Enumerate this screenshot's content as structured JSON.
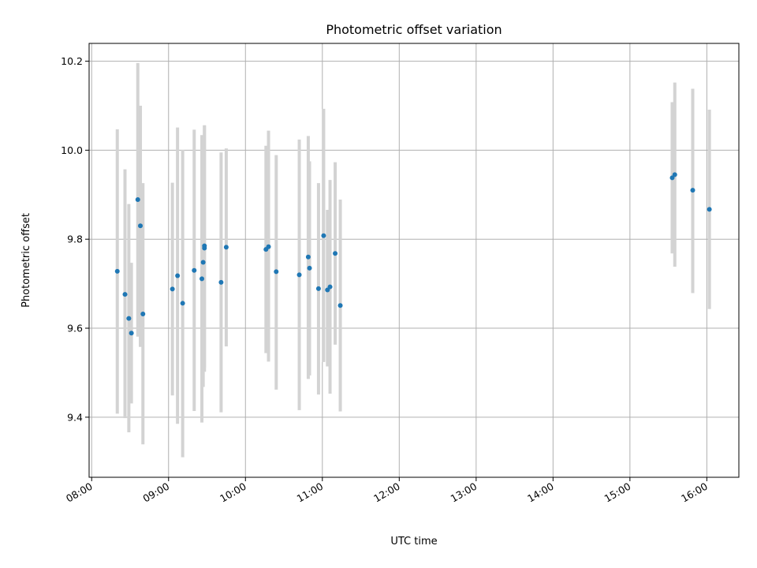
{
  "chart_data": {
    "type": "scatter",
    "title": "Photometric offset variation",
    "xlabel": "UTC time",
    "ylabel": "Photometric offset",
    "grid": true,
    "legend": "none",
    "xlim": [
      "07:58",
      "16:25"
    ],
    "ylim": [
      9.265,
      10.24
    ],
    "x_ticks": [
      "08:00",
      "09:00",
      "10:00",
      "11:00",
      "12:00",
      "13:00",
      "14:00",
      "15:00",
      "16:00"
    ],
    "y_ticks": [
      9.4,
      9.6,
      9.8,
      10.0,
      10.2
    ],
    "y_tick_labels": [
      "9.4",
      "9.6",
      "9.8",
      "10.0",
      "10.2"
    ],
    "colors": {
      "point": "#1f77b4",
      "errorbar": "#d3d3d3",
      "grid": "#b0b0b0"
    },
    "series": [
      {
        "points": [
          {
            "t": "08:20",
            "y": 9.728,
            "lo": 9.408,
            "hi": 10.047
          },
          {
            "t": "08:26",
            "y": 9.676,
            "lo": 9.398,
            "hi": 9.957
          },
          {
            "t": "08:29",
            "y": 9.622,
            "lo": 9.366,
            "hi": 9.879
          },
          {
            "t": "08:31",
            "y": 9.589,
            "lo": 9.431,
            "hi": 9.747
          },
          {
            "t": "08:36",
            "y": 9.889,
            "lo": 9.581,
            "hi": 10.196
          },
          {
            "t": "08:38",
            "y": 9.83,
            "lo": 9.558,
            "hi": 10.1
          },
          {
            "t": "08:40",
            "y": 9.632,
            "lo": 9.339,
            "hi": 9.926
          },
          {
            "t": "09:03",
            "y": 9.688,
            "lo": 9.449,
            "hi": 9.927
          },
          {
            "t": "09:07",
            "y": 9.718,
            "lo": 9.385,
            "hi": 10.051
          },
          {
            "t": "09:11",
            "y": 9.656,
            "lo": 9.31,
            "hi": 10.001
          },
          {
            "t": "09:20",
            "y": 9.73,
            "lo": 9.414,
            "hi": 10.046
          },
          {
            "t": "09:26",
            "y": 9.711,
            "lo": 9.388,
            "hi": 10.034
          },
          {
            "t": "09:27",
            "y": 9.748,
            "lo": 9.468,
            "hi": 10.03
          },
          {
            "t": "09:28",
            "y": 9.78,
            "lo": 9.502,
            "hi": 10.055
          },
          {
            "t": "09:28",
            "y": 9.785,
            "lo": 9.512,
            "hi": 10.056
          },
          {
            "t": "09:41",
            "y": 9.703,
            "lo": 9.411,
            "hi": 9.995
          },
          {
            "t": "09:45",
            "y": 9.782,
            "lo": 9.559,
            "hi": 10.004
          },
          {
            "t": "10:16",
            "y": 9.777,
            "lo": 9.544,
            "hi": 10.01
          },
          {
            "t": "10:18",
            "y": 9.783,
            "lo": 9.525,
            "hi": 10.044
          },
          {
            "t": "10:24",
            "y": 9.727,
            "lo": 9.462,
            "hi": 9.989
          },
          {
            "t": "10:42",
            "y": 9.72,
            "lo": 9.416,
            "hi": 10.024
          },
          {
            "t": "10:49",
            "y": 9.76,
            "lo": 9.486,
            "hi": 10.032
          },
          {
            "t": "10:50",
            "y": 9.735,
            "lo": 9.494,
            "hi": 9.975
          },
          {
            "t": "10:57",
            "y": 9.689,
            "lo": 9.451,
            "hi": 9.926
          },
          {
            "t": "11:01",
            "y": 9.808,
            "lo": 9.524,
            "hi": 10.093
          },
          {
            "t": "11:04",
            "y": 9.686,
            "lo": 9.514,
            "hi": 9.866
          },
          {
            "t": "11:06",
            "y": 9.693,
            "lo": 9.453,
            "hi": 9.933
          },
          {
            "t": "11:10",
            "y": 9.768,
            "lo": 9.563,
            "hi": 9.973
          },
          {
            "t": "11:14",
            "y": 9.651,
            "lo": 9.413,
            "hi": 9.889
          },
          {
            "t": "15:33",
            "y": 9.938,
            "lo": 9.768,
            "hi": 10.108
          },
          {
            "t": "15:35",
            "y": 9.945,
            "lo": 9.738,
            "hi": 10.152
          },
          {
            "t": "15:49",
            "y": 9.91,
            "lo": 9.679,
            "hi": 10.138
          },
          {
            "t": "16:02",
            "y": 9.867,
            "lo": 9.643,
            "hi": 10.091
          }
        ]
      }
    ]
  }
}
